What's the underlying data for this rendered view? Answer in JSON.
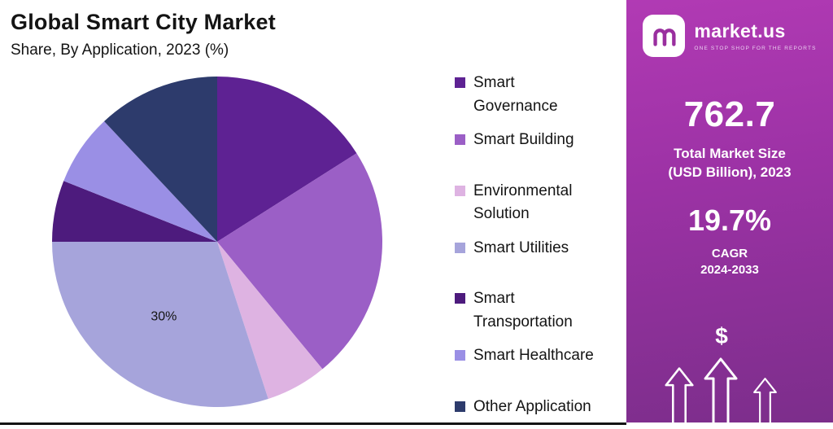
{
  "chart_data": {
    "type": "pie",
    "title": "Global Smart City Market",
    "subtitle": "Share, By Application, 2023 (%)",
    "unit": "%",
    "start_angle_deg": 0,
    "direction": "clockwise",
    "legend_position": "right",
    "segments": [
      {
        "label": "Smart Governance",
        "label_lines": [
          "Smart",
          "Governance"
        ],
        "value": 16,
        "color": "#5E2293",
        "group_start": true
      },
      {
        "label": "Smart Building",
        "value": 23,
        "color": "#9B5FC6"
      },
      {
        "label": "Environmental Solution",
        "label_lines": [
          "Environmental",
          "Solution"
        ],
        "value": 6,
        "color": "#DEB3E2",
        "group_start": true
      },
      {
        "label": "Smart Utilities",
        "value": 30,
        "color": "#A6A4DB",
        "data_label": "30%"
      },
      {
        "label": "Smart Transportation",
        "label_lines": [
          "Smart",
          "Transportation"
        ],
        "value": 6,
        "color": "#4D1B7D",
        "group_start": true
      },
      {
        "label": "Smart Healthcare",
        "value": 7,
        "color": "#9A8FE5"
      },
      {
        "label": "Other Application",
        "value": 12,
        "color": "#2D3B6C",
        "group_start": true
      }
    ]
  },
  "panel": {
    "brand": "market.us",
    "tagline": "ONE STOP SHOP FOR THE REPORTS",
    "stats": [
      {
        "value": "762.7",
        "label_lines": [
          "Total Market Size",
          "(USD Billion), 2023"
        ]
      },
      {
        "value": "19.7%",
        "label_lines": [
          "CAGR",
          "2024-2033"
        ]
      }
    ],
    "dollar_symbol": "$",
    "colors": {
      "panel_top": "#B13AB4",
      "panel_bottom": "#7C2E8B",
      "logo_glyph": "#9A2F9F"
    }
  }
}
